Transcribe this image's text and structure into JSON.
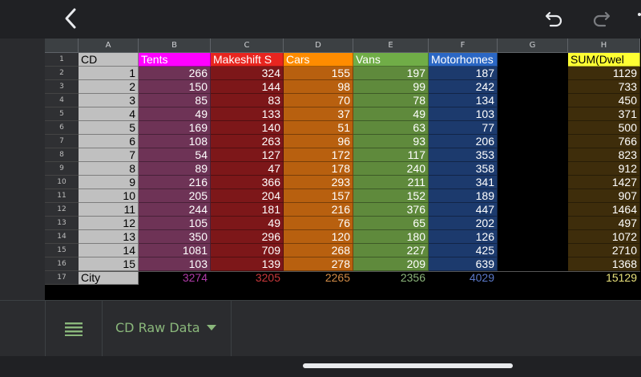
{
  "columns": [
    "A",
    "B",
    "C",
    "D",
    "E",
    "F",
    "G",
    "H"
  ],
  "row_numbers": [
    "1",
    "2",
    "3",
    "4",
    "5",
    "6",
    "7",
    "8",
    "9",
    "10",
    "11",
    "12",
    "13",
    "14",
    "15",
    "16",
    "17"
  ],
  "headers": [
    "CD",
    "Tents",
    "Makeshift S",
    "Cars",
    "Vans",
    "Motorhomes",
    "",
    "SUM(Dwel"
  ],
  "rows": [
    [
      "1",
      "266",
      "324",
      "155",
      "197",
      "187",
      "",
      "1129"
    ],
    [
      "2",
      "150",
      "144",
      "98",
      "99",
      "242",
      "",
      "733"
    ],
    [
      "3",
      "85",
      "83",
      "70",
      "78",
      "134",
      "",
      "450"
    ],
    [
      "4",
      "49",
      "133",
      "37",
      "49",
      "103",
      "",
      "371"
    ],
    [
      "5",
      "169",
      "140",
      "51",
      "63",
      "77",
      "",
      "500"
    ],
    [
      "6",
      "108",
      "263",
      "96",
      "93",
      "206",
      "",
      "766"
    ],
    [
      "7",
      "54",
      "127",
      "172",
      "117",
      "353",
      "",
      "823"
    ],
    [
      "8",
      "89",
      "47",
      "178",
      "240",
      "358",
      "",
      "912"
    ],
    [
      "9",
      "216",
      "366",
      "293",
      "211",
      "341",
      "",
      "1427"
    ],
    [
      "10",
      "205",
      "204",
      "157",
      "152",
      "189",
      "",
      "907"
    ],
    [
      "11",
      "244",
      "181",
      "216",
      "376",
      "447",
      "",
      "1464"
    ],
    [
      "12",
      "105",
      "49",
      "76",
      "65",
      "202",
      "",
      "497"
    ],
    [
      "13",
      "350",
      "296",
      "120",
      "180",
      "126",
      "",
      "1072"
    ],
    [
      "14",
      "1081",
      "709",
      "268",
      "227",
      "425",
      "",
      "2710"
    ],
    [
      "15",
      "103",
      "139",
      "278",
      "209",
      "639",
      "",
      "1368"
    ]
  ],
  "totals": [
    "City",
    "3274",
    "3205",
    "2265",
    "2356",
    "4029",
    "",
    "15129"
  ],
  "colors": {
    "header_bg": [
      "#c0c0c0",
      "#ff00ff",
      "#e8251f",
      "#ff8c00",
      "#70ad47",
      "#2b67c4",
      "#000000",
      "#ffff33"
    ],
    "header_fg": [
      "#000000",
      "#ffffff",
      "#ffffff",
      "#ffffff",
      "#ffffff",
      "#ffffff",
      "#ffffff",
      "#000000"
    ],
    "data_bg": [
      "#c0c0c0",
      "#6e3356",
      "#7d1719",
      "#b8600f",
      "#5f8a3c",
      "#1c3a6d",
      "#000000",
      "#3e2d0b"
    ],
    "data_fg": [
      "#000000",
      "#ffffff",
      "#ffffff",
      "#ffffff",
      "#ffffff",
      "#ffffff",
      "#ffffff",
      "#ffffff"
    ],
    "total_bg": [
      "#c0c0c0",
      "#000000",
      "#000000",
      "#000000",
      "#000000",
      "#000000",
      "#000000",
      "#000000"
    ],
    "total_fg": [
      "#000000",
      "#b03aa8",
      "#c8383b",
      "#d08a46",
      "#8bb57a",
      "#5a78c8",
      "#ffffff",
      "#e8e07a"
    ]
  },
  "icons": {
    "back": "chevron-left-icon",
    "undo": "undo-icon",
    "redo": "redo-icon",
    "overflow": "more-vert-icon",
    "sheets_menu": "menu-icon",
    "sheet_tab_arrow": "caret-down-icon"
  },
  "sheet_tab": {
    "label": "CD Raw Data"
  }
}
